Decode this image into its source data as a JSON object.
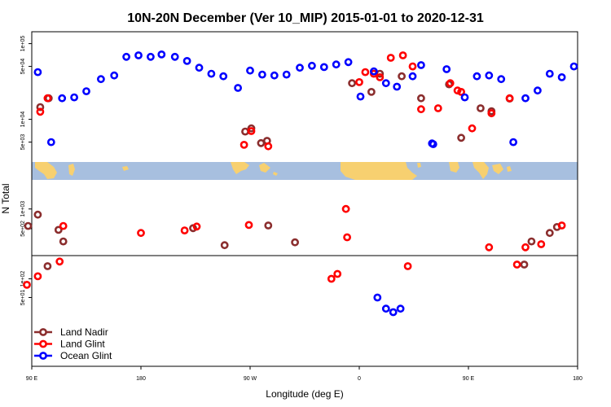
{
  "chart_data": {
    "type": "scatter",
    "title": "10N-20N December (Ver 10_MIP)   2015-01-01 to 2020-12-31",
    "xlabel": "Longitude (deg E)",
    "ylabel": "N Total",
    "x_domain": [
      90,
      540
    ],
    "x_ticks": [
      {
        "value": 90,
        "label": "90 E"
      },
      {
        "value": 180,
        "label": "180"
      },
      {
        "value": 270,
        "label": "90 W"
      },
      {
        "value": 360,
        "label": "0"
      },
      {
        "value": 450,
        "label": "90 E"
      },
      {
        "value": 540,
        "label": "180"
      }
    ],
    "panels": [
      {
        "id": "upper",
        "scale": "log",
        "ylim": [
          2800,
          140000
        ],
        "y_ticks": [
          {
            "value": 5000,
            "label": "5e+03"
          },
          {
            "value": 10000,
            "label": "1e+04"
          },
          {
            "value": 50000,
            "label": "5e+04"
          },
          {
            "value": 100000,
            "label": "1e+05"
          }
        ]
      },
      {
        "id": "middle",
        "scale": "log",
        "ylim": [
          200,
          2700
        ],
        "y_ticks": [
          {
            "value": 500,
            "label": "5e+02"
          },
          {
            "value": 1000,
            "label": "1e+03"
          }
        ]
      },
      {
        "id": "lower",
        "scale": "log",
        "ylim": [
          4,
          230
        ],
        "y_ticks": [
          {
            "value": 50,
            "label": "5e+01"
          },
          {
            "value": 100,
            "label": "1e+02"
          }
        ]
      }
    ],
    "series": [
      {
        "name": "Land Nadir",
        "color": "#8b2e2e",
        "points": [
          [
            97,
            14500
          ],
          [
            104,
            19000
          ],
          [
            266,
            6900
          ],
          [
            271,
            7600
          ],
          [
            284,
            5200
          ],
          [
            370,
            23000
          ],
          [
            395,
            37000
          ],
          [
            411,
            19000
          ],
          [
            444,
            5700
          ],
          [
            116,
            320
          ],
          [
            279,
            4850
          ],
          [
            285,
            560
          ],
          [
            354,
            30000
          ],
          [
            377,
            40000
          ],
          [
            87,
            550
          ],
          [
            95,
            820
          ],
          [
            103,
            160
          ],
          [
            112,
            480
          ],
          [
            223,
            510
          ],
          [
            249,
            280
          ],
          [
            307,
            310
          ],
          [
            496,
            170
          ],
          [
            502,
            320
          ],
          [
            517,
            430
          ],
          [
            523,
            530
          ],
          [
            434,
            29000
          ],
          [
            460,
            14000
          ],
          [
            469,
            12800
          ],
          [
            484,
            18800
          ]
        ]
      },
      {
        "name": "Land Glint",
        "color": "#ff0000",
        "points": [
          [
            97,
            12600
          ],
          [
            103,
            19000
          ],
          [
            265,
            4600
          ],
          [
            271,
            7000
          ],
          [
            285,
            4400
          ],
          [
            377,
            36000
          ],
          [
            386,
            65000
          ],
          [
            411,
            13600
          ],
          [
            425,
            14000
          ],
          [
            453,
            7600
          ],
          [
            469,
            12000
          ],
          [
            484,
            19000
          ],
          [
            444,
            23000
          ],
          [
            116,
            550
          ],
          [
            349,
            1000
          ],
          [
            360,
            31000
          ],
          [
            396,
            70000
          ],
          [
            365,
            42000
          ],
          [
            86,
            80
          ],
          [
            95,
            110
          ],
          [
            113,
            190
          ],
          [
            350,
            370
          ],
          [
            372,
            40000
          ],
          [
            404,
            50000
          ],
          [
            435,
            30000
          ],
          [
            441,
            24000
          ],
          [
            180,
            430
          ],
          [
            216,
            470
          ],
          [
            226,
            540
          ],
          [
            269,
            570
          ],
          [
            337,
            100
          ],
          [
            342,
            120
          ],
          [
            400,
            160
          ],
          [
            467,
            260
          ],
          [
            490,
            170
          ],
          [
            497,
            260
          ],
          [
            510,
            290
          ],
          [
            527,
            560
          ]
        ]
      },
      {
        "name": "Ocean Glint",
        "color": "#0000ff",
        "points": [
          [
            95,
            42000
          ],
          [
            106,
            5000
          ],
          [
            115,
            19000
          ],
          [
            125,
            19500
          ],
          [
            135,
            23500
          ],
          [
            147,
            34000
          ],
          [
            158,
            38000
          ],
          [
            168,
            67000
          ],
          [
            178,
            70000
          ],
          [
            188,
            67000
          ],
          [
            197,
            72000
          ],
          [
            208,
            67000
          ],
          [
            218,
            59000
          ],
          [
            228,
            48000
          ],
          [
            238,
            40000
          ],
          [
            248,
            37000
          ],
          [
            260,
            26000
          ],
          [
            270,
            44000
          ],
          [
            280,
            39000
          ],
          [
            290,
            38000
          ],
          [
            300,
            39000
          ],
          [
            311,
            48000
          ],
          [
            321,
            51000
          ],
          [
            331,
            49000
          ],
          [
            341,
            53000
          ],
          [
            351,
            57000
          ],
          [
            361,
            20000
          ],
          [
            372,
            43000
          ],
          [
            382,
            30000
          ],
          [
            391,
            27000
          ],
          [
            404,
            37000
          ],
          [
            411,
            52000
          ],
          [
            421,
            4700
          ],
          [
            432,
            46000
          ],
          [
            447,
            19500
          ],
          [
            457,
            37000
          ],
          [
            467,
            38000
          ],
          [
            477,
            34000
          ],
          [
            487,
            5000
          ],
          [
            497,
            19000
          ],
          [
            507,
            24000
          ],
          [
            517,
            40000
          ],
          [
            527,
            36000
          ],
          [
            537,
            50000
          ],
          [
            375,
            50
          ],
          [
            382,
            33
          ],
          [
            388,
            29
          ],
          [
            394,
            33
          ],
          [
            420,
            4800
          ]
        ]
      }
    ],
    "legend": {
      "position": "bottom-left",
      "entries": [
        "Land Nadir",
        "Land Glint",
        "Ocean Glint"
      ]
    }
  }
}
